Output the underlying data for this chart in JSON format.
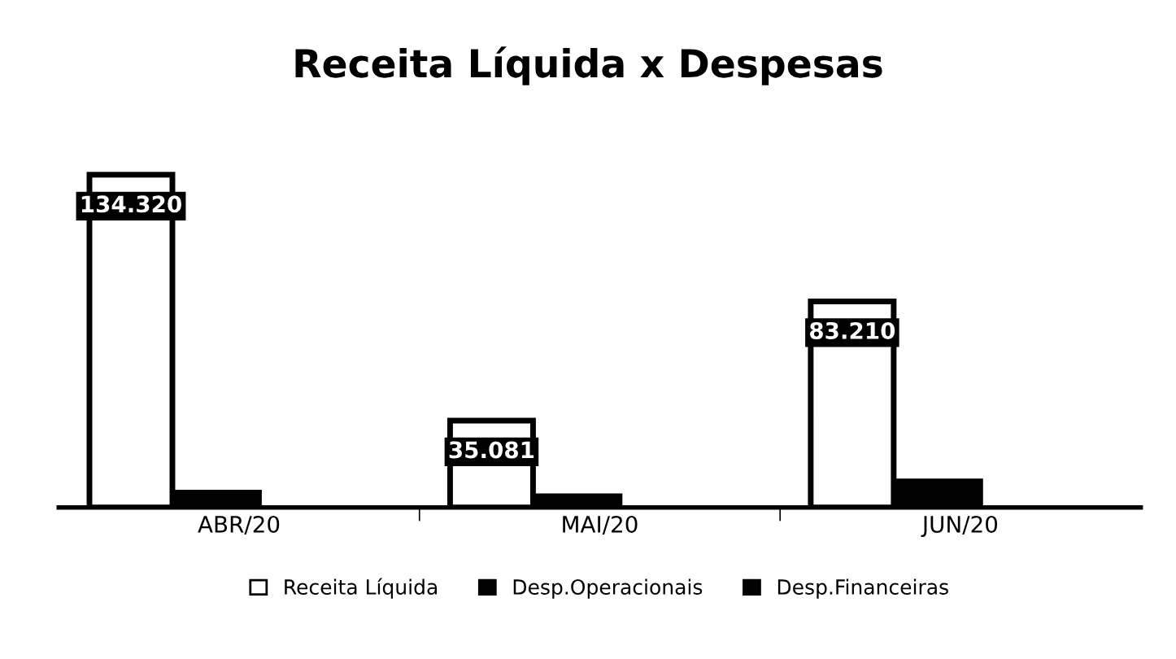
{
  "chart_data": {
    "type": "bar",
    "title": "Receita Líquida x Despesas",
    "categories": [
      "ABR/20",
      "MAI/20",
      "JUN/20"
    ],
    "series": [
      {
        "name": "Receita Líquida",
        "color": "#ffffff",
        "values": [
          134320,
          35081,
          83210
        ],
        "value_labels": [
          "134.320",
          "35.081",
          "83.210"
        ]
      },
      {
        "name": "Desp.Operacionais",
        "color": "#000000",
        "values": [
          6000,
          4500,
          10500
        ]
      },
      {
        "name": "Desp.Financeiras",
        "color": "#000000",
        "values": [
          null,
          null,
          null
        ]
      }
    ],
    "tick_labels": "x",
    "legend": "bottom"
  }
}
